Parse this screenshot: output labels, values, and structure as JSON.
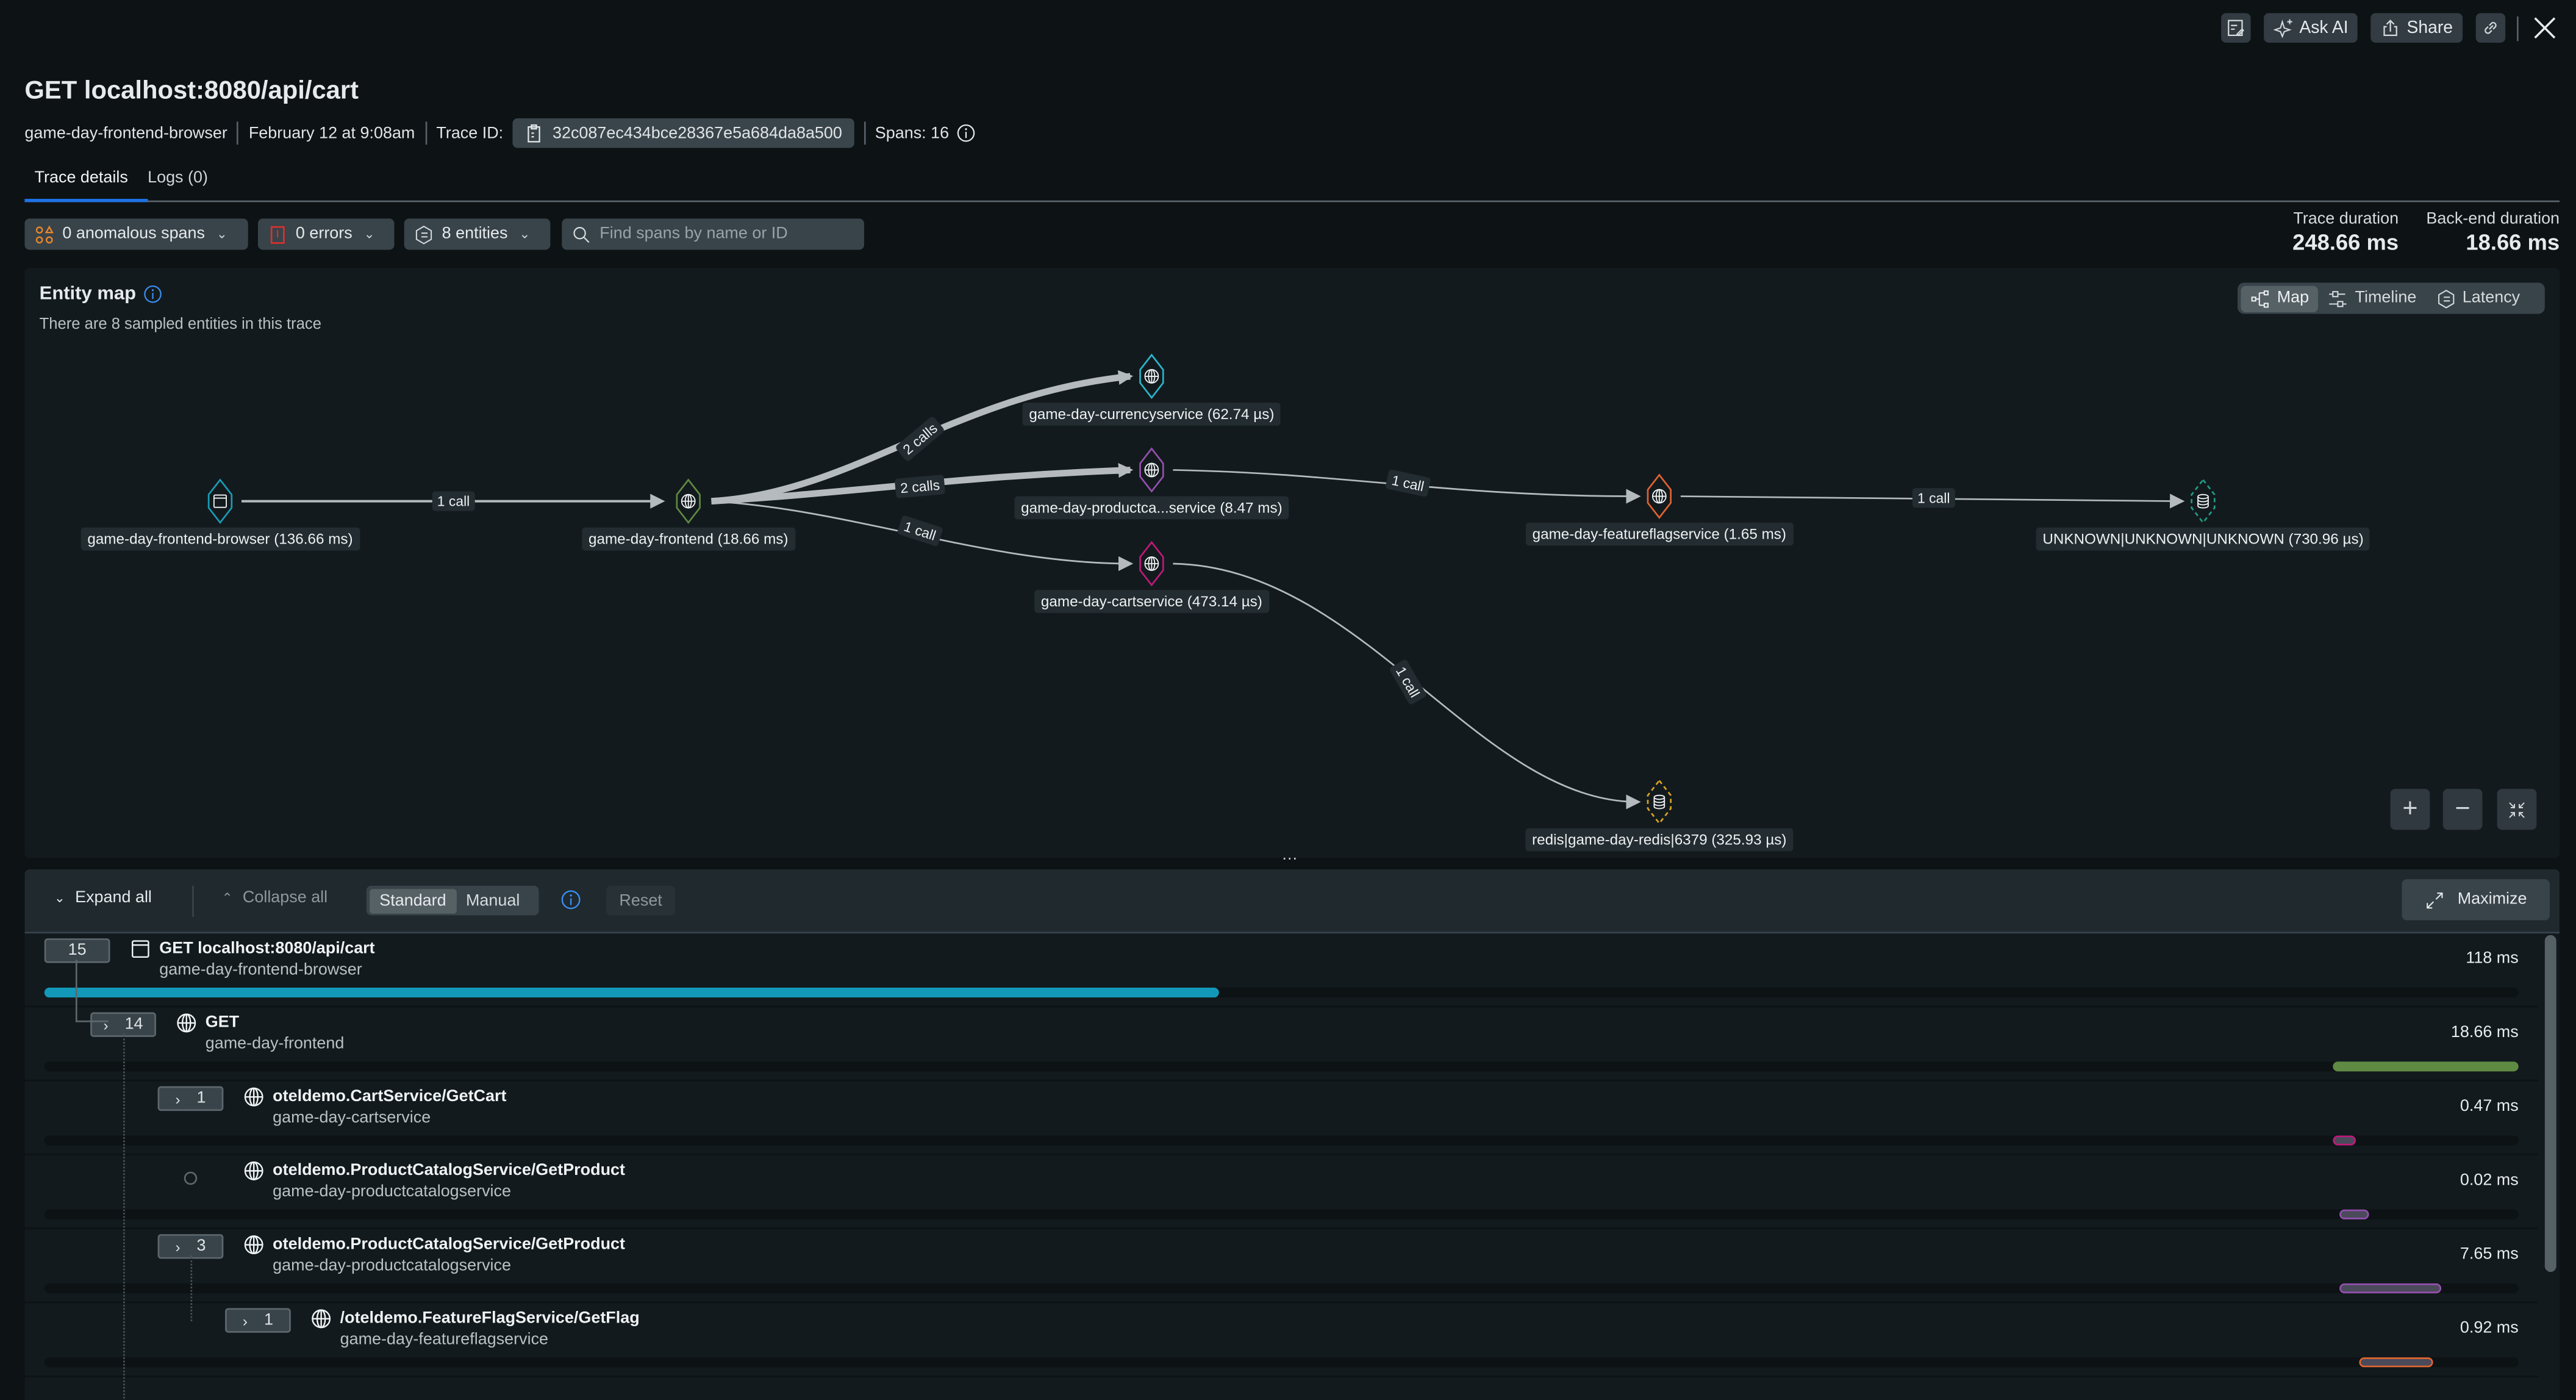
{
  "toolbar": {
    "ask_ai": "Ask AI",
    "share": "Share"
  },
  "header": {
    "title": "GET localhost:8080/api/cart",
    "service": "game-day-frontend-browser",
    "timestamp": "February 12 at 9:08am",
    "trace_id_label": "Trace ID:",
    "trace_id": "32c087ec434bce28367e5a684da8a500",
    "spans": "Spans: 16"
  },
  "tabs": [
    {
      "label": "Trace details",
      "active": true
    },
    {
      "label": "Logs (0)",
      "active": false
    }
  ],
  "filters": {
    "anomalous": "0 anomalous spans",
    "errors": "0 errors",
    "entities": "8 entities",
    "search_placeholder": "Find spans by name or ID"
  },
  "durations": {
    "trace_label": "Trace duration",
    "trace_value": "248.66 ms",
    "backend_label": "Back-end duration",
    "backend_value": "18.66 ms"
  },
  "entity_map": {
    "title": "Entity map",
    "subtitle": "There are 8 sampled entities in this trace",
    "views": [
      "Map",
      "Timeline",
      "Latency"
    ],
    "active_view": "Map",
    "nodes": [
      {
        "id": "browser",
        "label": "game-day-frontend-browser (136.66 ms)",
        "icon": "browser-icon",
        "color": "#1a9bb5"
      },
      {
        "id": "frontend",
        "label": "game-day-frontend (18.66 ms)",
        "icon": "globe-icon",
        "color": "#5f8a43"
      },
      {
        "id": "currency",
        "label": "game-day-currencyservice (62.74 µs)",
        "icon": "globe-icon",
        "color": "#2bb3cc"
      },
      {
        "id": "product",
        "label": "game-day-productca...service (8.47 ms)",
        "icon": "globe-icon",
        "color": "#9550b0"
      },
      {
        "id": "cart",
        "label": "game-day-cartservice (473.14 µs)",
        "icon": "globe-icon",
        "color": "#c0197a"
      },
      {
        "id": "featureflag",
        "label": "game-day-featureflagservice (1.65 ms)",
        "icon": "globe-icon",
        "color": "#e0642f"
      },
      {
        "id": "unknown",
        "label": "UNKNOWN|UNKNOWN|UNKNOWN (730.96 µs)",
        "icon": "database-icon",
        "color": "#1f9d88",
        "dashed": true
      },
      {
        "id": "redis",
        "label": "redis|game-day-redis|6379 (325.93 µs)",
        "icon": "database-icon",
        "color": "#d9a521",
        "dashed": true
      }
    ],
    "edges": [
      {
        "from": "browser",
        "to": "frontend",
        "label": "1 call"
      },
      {
        "from": "frontend",
        "to": "currency",
        "label": "2 calls"
      },
      {
        "from": "frontend",
        "to": "product",
        "label": "2 calls"
      },
      {
        "from": "frontend",
        "to": "cart",
        "label": "1 call"
      },
      {
        "from": "product",
        "to": "featureflag",
        "label": "1 call"
      },
      {
        "from": "featureflag",
        "to": "unknown",
        "label": "1 call"
      },
      {
        "from": "cart",
        "to": "redis",
        "label": "1 call"
      }
    ]
  },
  "span_toolbar": {
    "expand_all": "Expand all",
    "collapse_all": "Collapse all",
    "modes": [
      "Standard",
      "Manual"
    ],
    "active_mode": "Standard",
    "reset": "Reset",
    "maximize": "Maximize"
  },
  "spans": [
    {
      "count": "15",
      "name": "GET localhost:8080/api/cart",
      "service": "game-day-frontend-browser",
      "duration": "118 ms",
      "icon": "browser-icon",
      "bar_color": "#1298b8",
      "bar_start": 0,
      "bar_end": 0.4745
    },
    {
      "count": "14",
      "name": "GET",
      "service": "game-day-frontend",
      "duration": "18.66 ms",
      "icon": "globe-icon",
      "bar_color": "#5f8a43",
      "bar_start": 0.925,
      "bar_end": 1.0
    },
    {
      "count": "1",
      "name": "oteldemo.CartService/GetCart",
      "service": "game-day-cartservice",
      "duration": "0.47 ms",
      "icon": "globe-icon",
      "bar_color": "#c0197a",
      "bar_start": 0.925,
      "bar_end": 0.9343
    },
    {
      "count": "",
      "name": "oteldemo.ProductCatalogService/GetProduct",
      "service": "game-day-productcatalogservice",
      "duration": "0.02 ms",
      "icon": "globe-icon",
      "bar_color": "#9550b0",
      "bar_start": 0.9277,
      "bar_end": 0.9396
    },
    {
      "count": "3",
      "name": "oteldemo.ProductCatalogService/GetProduct",
      "service": "game-day-productcatalogservice",
      "duration": "7.65 ms",
      "icon": "globe-icon",
      "bar_color": "#9550b0",
      "bar_start": 0.9277,
      "bar_end": 0.9688
    },
    {
      "count": "1",
      "name": "/oteldemo.FeatureFlagService/GetFlag",
      "service": "game-day-featureflagservice",
      "duration": "0.92 ms",
      "icon": "globe-icon",
      "bar_color": "#e0642f",
      "bar_start": 0.9356,
      "bar_end": 0.9655
    }
  ]
}
